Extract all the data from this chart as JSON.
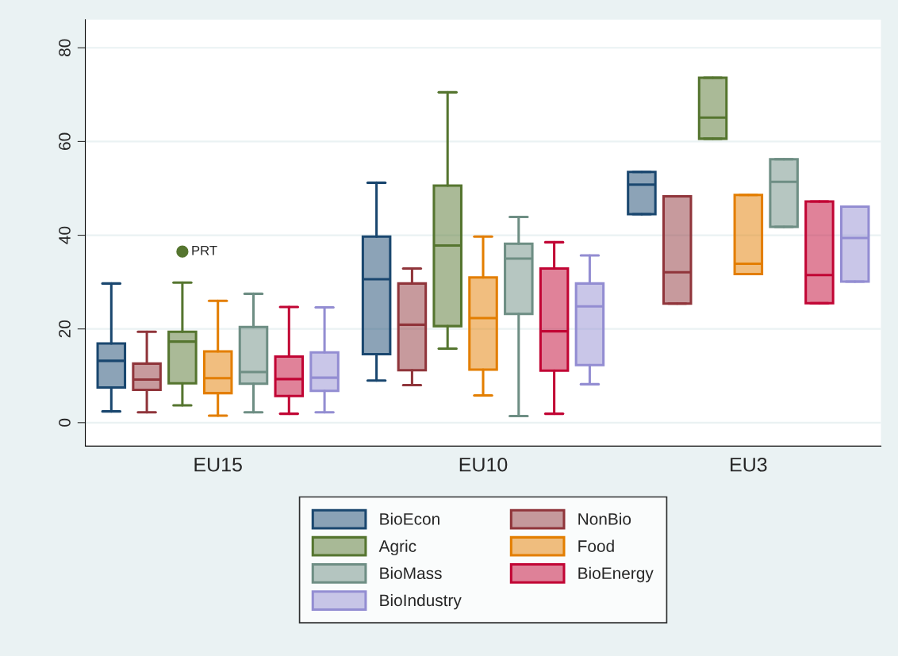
{
  "chart_data": {
    "type": "box",
    "categories": [
      "EU15",
      "EU10",
      "EU3"
    ],
    "ylim": [
      -5,
      86
    ],
    "yticks": [
      0,
      20,
      40,
      60,
      80
    ],
    "grid": "y",
    "legend": "bottom",
    "annotations": [
      "PRT"
    ],
    "series": [
      {
        "name": "BioEcon",
        "color": "#1a476f",
        "boxes": [
          {
            "low": 2.4,
            "q1": 7.5,
            "median": 13.2,
            "q3": 16.9,
            "high": 29.7
          },
          {
            "low": 9.0,
            "q1": 14.6,
            "median": 30.6,
            "q3": 39.7,
            "high": 51.2
          },
          {
            "low": 44.5,
            "q1": 44.5,
            "median": 50.8,
            "q3": 53.5,
            "high": 53.5
          }
        ]
      },
      {
        "name": "NonBio",
        "color": "#90353b",
        "boxes": [
          {
            "low": 2.2,
            "q1": 7.0,
            "median": 9.2,
            "q3": 12.6,
            "high": 19.4
          },
          {
            "low": 8.0,
            "q1": 11.2,
            "median": 20.9,
            "q3": 29.7,
            "high": 32.9
          },
          {
            "low": 25.4,
            "q1": 25.4,
            "median": 32.1,
            "q3": 48.3,
            "high": 48.3
          }
        ]
      },
      {
        "name": "Agric",
        "color": "#55752f",
        "boxes": [
          {
            "low": 3.7,
            "q1": 8.4,
            "median": 17.3,
            "q3": 19.4,
            "high": 29.9,
            "outliers": [
              36.5
            ]
          },
          {
            "low": 15.8,
            "q1": 20.6,
            "median": 37.8,
            "q3": 50.6,
            "high": 70.5
          },
          {
            "low": 60.6,
            "q1": 60.6,
            "median": 65.1,
            "q3": 73.6,
            "high": 73.6
          }
        ]
      },
      {
        "name": "Food",
        "color": "#e37e00",
        "boxes": [
          {
            "low": 1.5,
            "q1": 6.3,
            "median": 9.5,
            "q3": 15.2,
            "high": 26.0
          },
          {
            "low": 5.8,
            "q1": 11.3,
            "median": 22.3,
            "q3": 31.0,
            "high": 39.7
          },
          {
            "low": 31.7,
            "q1": 31.7,
            "median": 33.9,
            "q3": 48.6,
            "high": 48.6
          }
        ]
      },
      {
        "name": "BioMass",
        "color": "#6e8e84",
        "boxes": [
          {
            "low": 2.2,
            "q1": 8.3,
            "median": 10.8,
            "q3": 20.4,
            "high": 27.5
          },
          {
            "low": 1.4,
            "q1": 23.2,
            "median": 35.0,
            "q3": 38.2,
            "high": 43.9
          },
          {
            "low": 41.8,
            "q1": 41.8,
            "median": 51.4,
            "q3": 56.2,
            "high": 56.2
          }
        ]
      },
      {
        "name": "BioEnergy",
        "color": "#c10534",
        "boxes": [
          {
            "low": 1.9,
            "q1": 5.7,
            "median": 9.3,
            "q3": 14.1,
            "high": 24.7
          },
          {
            "low": 1.9,
            "q1": 11.1,
            "median": 19.5,
            "q3": 32.9,
            "high": 38.5
          },
          {
            "low": 25.5,
            "q1": 25.5,
            "median": 31.5,
            "q3": 47.2,
            "high": 47.2
          }
        ]
      },
      {
        "name": "BioIndustry",
        "color": "#938dd2",
        "boxes": [
          {
            "low": 2.2,
            "q1": 6.8,
            "median": 9.6,
            "q3": 15.0,
            "high": 24.6
          },
          {
            "low": 8.2,
            "q1": 12.3,
            "median": 24.8,
            "q3": 29.7,
            "high": 35.7
          },
          {
            "low": 30.1,
            "q1": 30.1,
            "median": 39.4,
            "q3": 46.1,
            "high": 46.1
          }
        ]
      }
    ]
  }
}
